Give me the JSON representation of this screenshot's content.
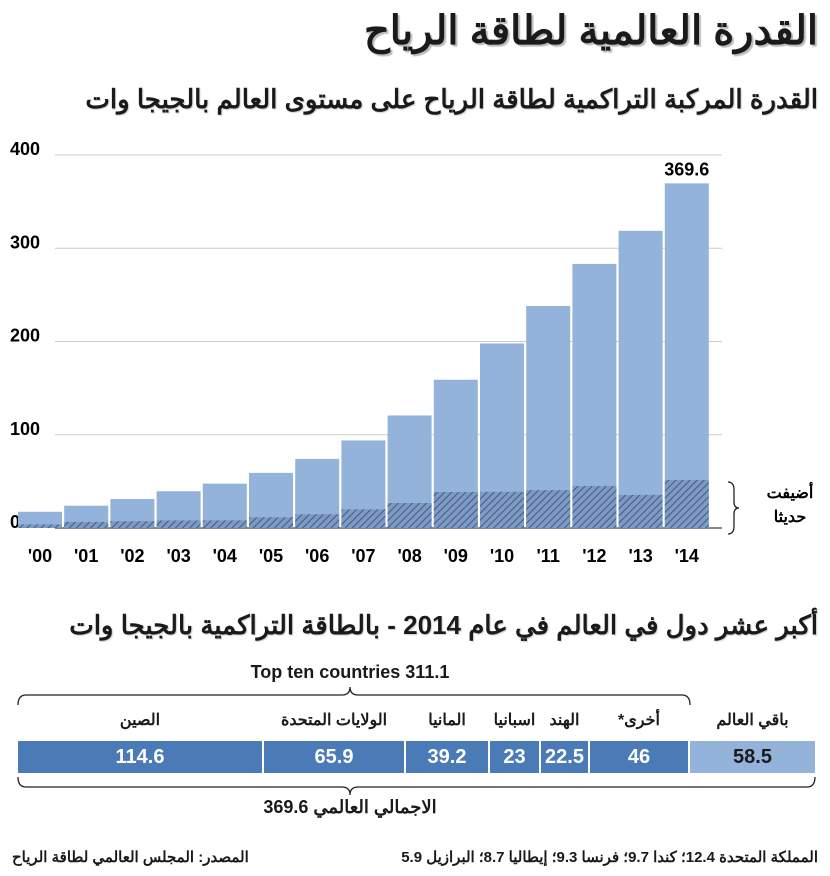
{
  "title": "القدرة العالمية لطاقة الرياح",
  "subtitle": "القدرة المركبة التراكمية لطاقة الرياح على مستوى العالم بالجيجا وات",
  "chart_data": {
    "type": "bar",
    "categories": [
      "'00",
      "'01",
      "'02",
      "'03",
      "'04",
      "'05",
      "'06",
      "'07",
      "'08",
      "'09",
      "'10",
      "'11",
      "'12",
      "'13",
      "'14"
    ],
    "series": [
      {
        "name": "",
        "values": [
          17.4,
          23.9,
          31.1,
          39.4,
          47.6,
          59.1,
          74.1,
          93.9,
          120.7,
          159.0,
          197.9,
          238.1,
          283.2,
          318.7,
          369.6
        ],
        "color": "#94b3da"
      },
      {
        "name": "أضيفت حديثا",
        "values": [
          3.8,
          6.5,
          7.3,
          8.1,
          8.2,
          11.5,
          14.7,
          20.0,
          26.8,
          38.6,
          38.8,
          40.6,
          45.0,
          35.5,
          51.5
        ],
        "color": "#5b7aa6",
        "pattern": "hatched"
      }
    ],
    "yticks": [
      "0",
      "100",
      "200",
      "300",
      "400"
    ],
    "ylim": [
      0,
      400
    ],
    "grid": true,
    "data_label": "369.6",
    "legend_label_1": "أضيفت",
    "legend_label_2": "حديثا"
  },
  "breakdown": {
    "title": "أكبر عشر دول في العالم في عام 2014 - بالطاقة التراكمية بالجيجا وات",
    "top_ten_label": "Top ten countries 311.1",
    "total_label": "الاجمالي العالمي 369.6",
    "segments": [
      {
        "label": "الصين",
        "value": "114.6"
      },
      {
        "label": "الولايات المتحدة",
        "value": "65.9"
      },
      {
        "label": "المانيا",
        "value": "39.2"
      },
      {
        "label": "اسبانيا",
        "value": "23"
      },
      {
        "label": "الهند",
        "value": "22.5"
      },
      {
        "label": "أخرى*",
        "value": "46"
      },
      {
        "label": "باقي العالم",
        "value": "58.5"
      }
    ],
    "colors": {
      "top_ten": "#4a7bb7",
      "rest": "#94b3da"
    }
  },
  "footer": {
    "others_note": "المملكة المتحدة 12.4؛ كندا 9.7؛ فرنسا 9.3؛ إيطاليا 8.7؛ البرازيل 5.9",
    "source": "المصدر: المجلس العالمي لطاقة الرياح"
  }
}
